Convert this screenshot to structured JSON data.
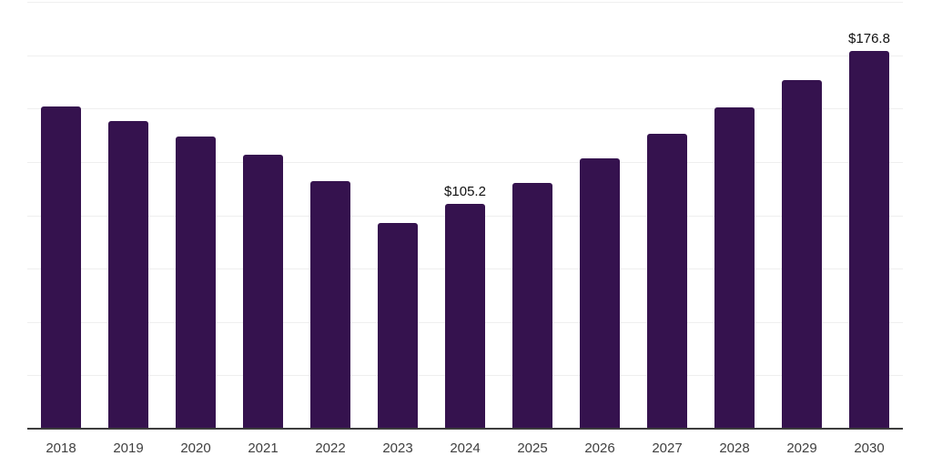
{
  "chart_data": {
    "type": "bar",
    "title": "",
    "xlabel": "",
    "ylabel": "",
    "categories": [
      "2018",
      "2019",
      "2020",
      "2021",
      "2022",
      "2023",
      "2024",
      "2025",
      "2026",
      "2027",
      "2028",
      "2029",
      "2030"
    ],
    "values": [
      151.0,
      144.0,
      137.0,
      128.5,
      115.8,
      96.2,
      105.2,
      115.0,
      126.5,
      138.0,
      150.5,
      163.5,
      176.8
    ],
    "data_labels": [
      "",
      "",
      "",
      "",
      "",
      "",
      "$105.2",
      "",
      "",
      "",
      "",
      "",
      "$176.8"
    ],
    "ylim": [
      0,
      200
    ],
    "gridline_step": 25,
    "grid": true,
    "legend": false,
    "colors": {
      "bar": "#35124e",
      "gridline": "#efefef",
      "axis": "#3d3d3d",
      "tick_text": "#3f3f3f",
      "data_label_text": "#101010",
      "background": "#ffffff"
    }
  }
}
